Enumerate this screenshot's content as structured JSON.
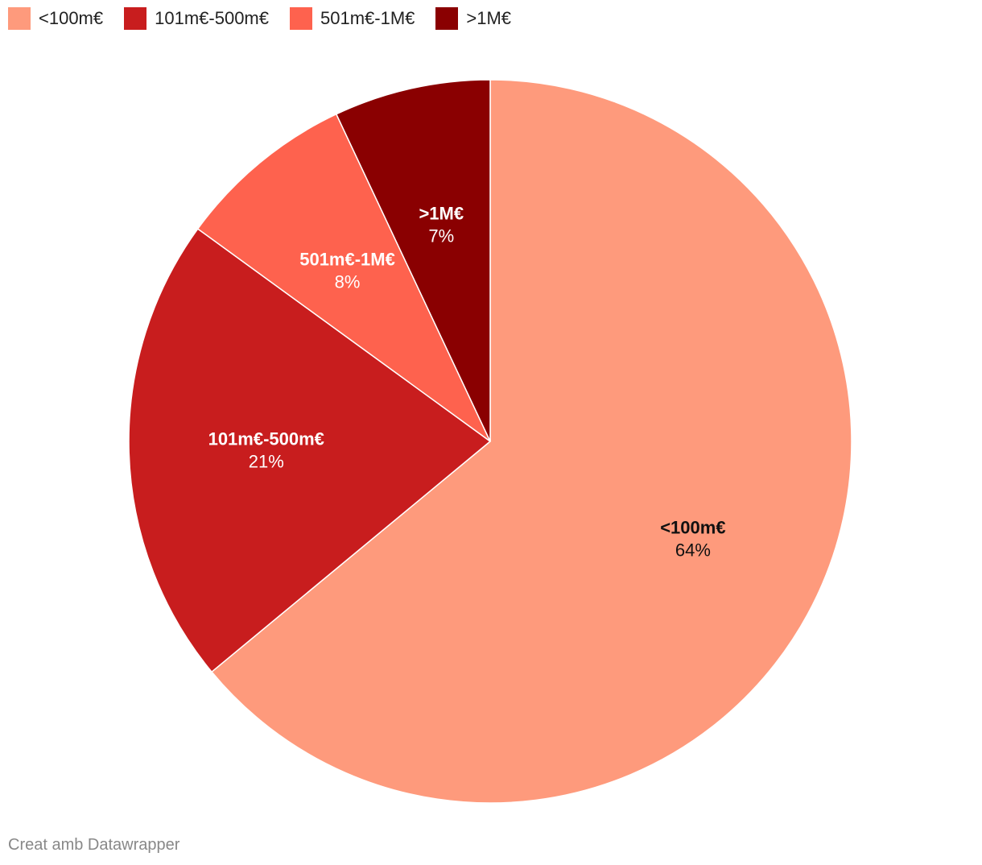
{
  "chart_data": {
    "type": "pie",
    "slices": [
      {
        "label": "<100m€",
        "value": 64,
        "display": "64%",
        "color": "#fe9a7c",
        "label_color": "#111111"
      },
      {
        "label": "101m€-500m€",
        "value": 21,
        "display": "21%",
        "color": "#c81d1e",
        "label_color": "#ffffff"
      },
      {
        "label": "501m€-1M€",
        "value": 8,
        "display": "8%",
        "color": "#fe624e",
        "label_color": "#ffffff"
      },
      {
        "label": ">1M€",
        "value": 7,
        "display": "7%",
        "color": "#8a0001",
        "label_color": "#ffffff"
      }
    ],
    "legend_position": "top-left",
    "start": "12 o'clock",
    "direction": "clockwise"
  },
  "footer": {
    "credit": "Creat amb Datawrapper"
  }
}
